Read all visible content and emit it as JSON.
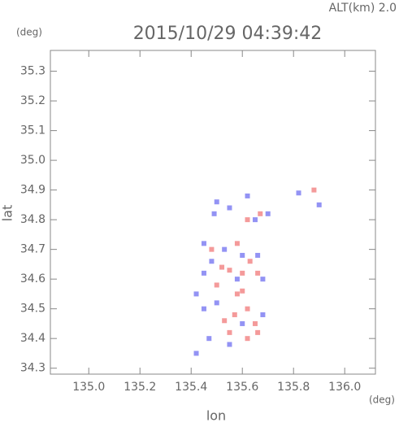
{
  "chart_data": {
    "type": "scatter",
    "annotation": "ALT(km) 2.0",
    "title": "2015/10/29 04:39:42",
    "y_unit": "(deg)",
    "x_unit": "(deg)",
    "ylabel": "lat",
    "xlabel": "lon",
    "xlim": [
      134.85,
      136.12
    ],
    "ylim": [
      34.28,
      35.37
    ],
    "xticks": [
      {
        "value": 135.0,
        "label": "135.0"
      },
      135.2,
      135.4,
      135.6,
      135.8,
      {
        "value": 136.0,
        "label": "136.0"
      }
    ],
    "yticks": [
      34.3,
      34.4,
      34.5,
      34.6,
      34.7,
      34.8,
      34.9,
      {
        "value": 35.0,
        "label": "35.0"
      },
      35.1,
      35.2,
      35.3
    ],
    "series": [
      {
        "color": "#f07878",
        "x": [
          135.52,
          135.55,
          135.6,
          135.63,
          135.58,
          135.5,
          135.62,
          135.65,
          135.55,
          135.62,
          135.66,
          135.48,
          135.58,
          135.62,
          135.67,
          135.88,
          135.57,
          135.6,
          135.53,
          135.66
        ],
        "values": [
          34.64,
          34.63,
          34.62,
          34.66,
          34.55,
          34.58,
          34.5,
          34.45,
          34.42,
          34.4,
          34.42,
          34.7,
          34.72,
          34.8,
          34.82,
          34.9,
          34.48,
          34.56,
          34.46,
          34.62
        ]
      },
      {
        "color": "#6f6ff0",
        "x": [
          135.45,
          135.48,
          135.53,
          135.6,
          135.66,
          135.68,
          135.45,
          135.5,
          135.47,
          135.55,
          135.42,
          135.6,
          135.68,
          135.5,
          135.49,
          135.55,
          135.65,
          135.7,
          135.62,
          135.82,
          135.9,
          135.42,
          135.45,
          135.58
        ],
        "values": [
          34.62,
          34.66,
          34.7,
          34.68,
          34.68,
          34.6,
          34.5,
          34.52,
          34.4,
          34.38,
          34.35,
          34.45,
          34.48,
          34.86,
          34.82,
          34.84,
          34.8,
          34.82,
          34.88,
          34.89,
          34.85,
          34.55,
          34.72,
          34.6
        ]
      }
    ]
  }
}
